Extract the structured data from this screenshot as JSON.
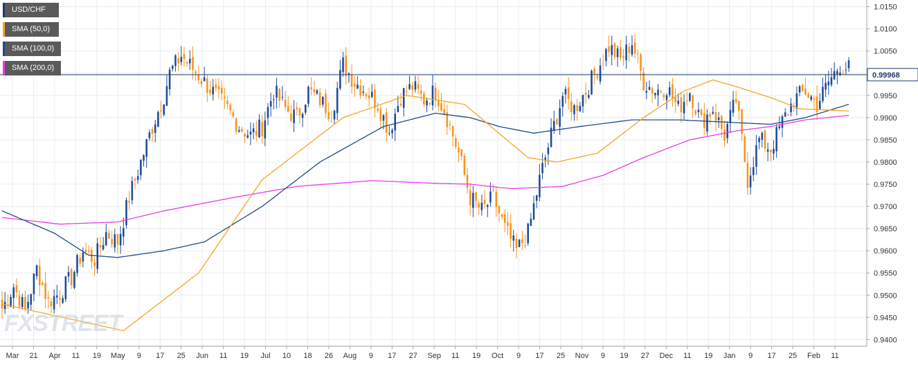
{
  "legend": [
    {
      "label": "USD/CHF",
      "color": "#1f3a68"
    },
    {
      "label": "SMA (50,0)",
      "color": "#f5a623"
    },
    {
      "label": "SMA (100,0)",
      "color": "#1e4b8f"
    },
    {
      "label": "SMA (200,0)",
      "color": "#e83ce8"
    }
  ],
  "watermark": "FXSTREET",
  "chart_data": {
    "type": "candlestick",
    "instrument": "USD/CHF",
    "grid": true,
    "price_axis": "right",
    "ylim": [
      0.9385,
      1.0165
    ],
    "y_ticks": [
      "1.0150",
      "1.0100",
      "1.0050",
      "1.0000",
      "0.9950",
      "0.9900",
      "0.9850",
      "0.9800",
      "0.9750",
      "0.9700",
      "0.9650",
      "0.9600",
      "0.9550",
      "0.9500",
      "0.9450",
      "0.9400"
    ],
    "x_ticks": [
      "Mar",
      "21",
      "Apr",
      "11",
      "19",
      "May",
      "9",
      "17",
      "25",
      "Jun",
      "11",
      "19",
      "Jul",
      "10",
      "18",
      "26",
      "Aug",
      "9",
      "17",
      "27",
      "Sep",
      "11",
      "19",
      "Oct",
      "9",
      "17",
      "25",
      "Nov",
      "9",
      "19",
      "27",
      "Dec",
      "11",
      "19",
      "Jan",
      "9",
      "17",
      "25",
      "Feb",
      "11"
    ],
    "current_price": "0.99968",
    "current_price_value": 0.99968,
    "colors": {
      "bull": "#1e4b9a",
      "bear": "#f7931e",
      "sma50": "#f5a623",
      "sma100": "#1e4b8f",
      "sma200": "#e83ce8",
      "price_line": "#1f3a68",
      "grid": "#e8ecf2"
    },
    "close_path": [
      [
        0,
        0.947
      ],
      [
        4,
        0.952
      ],
      [
        8,
        0.9465
      ],
      [
        12,
        0.956
      ],
      [
        16,
        0.9485
      ],
      [
        20,
        0.9505
      ],
      [
        24,
        0.954
      ],
      [
        28,
        0.96
      ],
      [
        32,
        0.958
      ],
      [
        36,
        0.964
      ],
      [
        40,
        0.962
      ],
      [
        44,
        0.972
      ],
      [
        48,
        0.98
      ],
      [
        52,
        0.988
      ],
      [
        56,
        0.995
      ],
      [
        58,
        1.0
      ],
      [
        62,
        1.004
      ],
      [
        66,
        1.001
      ],
      [
        70,
        0.998
      ],
      [
        74,
        0.995
      ],
      [
        78,
        0.992
      ],
      [
        82,
        0.988
      ],
      [
        86,
        0.986
      ],
      [
        90,
        0.988
      ],
      [
        94,
        0.996
      ],
      [
        98,
        0.992
      ],
      [
        102,
        0.99
      ],
      [
        106,
        0.996
      ],
      [
        110,
        0.994
      ],
      [
        114,
        0.991
      ],
      [
        118,
        1.002
      ],
      [
        122,
        0.998
      ],
      [
        126,
        0.996
      ],
      [
        130,
        0.993
      ],
      [
        134,
        0.987
      ],
      [
        138,
        0.995
      ],
      [
        142,
        0.997
      ],
      [
        146,
        0.994
      ],
      [
        150,
        0.996
      ],
      [
        154,
        0.99
      ],
      [
        158,
        0.982
      ],
      [
        162,
        0.972
      ],
      [
        166,
        0.969
      ],
      [
        170,
        0.972
      ],
      [
        174,
        0.965
      ],
      [
        178,
        0.96
      ],
      [
        182,
        0.964
      ],
      [
        186,
        0.976
      ],
      [
        190,
        0.986
      ],
      [
        194,
        0.995
      ],
      [
        198,
        0.992
      ],
      [
        202,
        0.996
      ],
      [
        206,
        1.001
      ],
      [
        210,
        1.006
      ],
      [
        214,
        1.003
      ],
      [
        218,
        1.007
      ],
      [
        222,
        0.998
      ],
      [
        226,
        0.996
      ],
      [
        230,
        0.997
      ],
      [
        234,
        0.992
      ],
      [
        238,
        0.996
      ],
      [
        242,
        0.989
      ],
      [
        246,
        0.992
      ],
      [
        250,
        0.986
      ],
      [
        254,
        0.994
      ],
      [
        258,
        0.976
      ],
      [
        262,
        0.985
      ],
      [
        266,
        0.983
      ],
      [
        270,
        0.989
      ],
      [
        274,
        0.994
      ],
      [
        278,
        0.996
      ],
      [
        282,
        0.993
      ],
      [
        286,
        0.998
      ],
      [
        290,
        1.002
      ],
      [
        293,
        1.001
      ]
    ],
    "sma50": [
      [
        0,
        0.948
      ],
      [
        42,
        0.942
      ],
      [
        68,
        0.955
      ],
      [
        90,
        0.976
      ],
      [
        118,
        0.99
      ],
      [
        140,
        0.995
      ],
      [
        160,
        0.993
      ],
      [
        182,
        0.981
      ],
      [
        192,
        0.98
      ],
      [
        206,
        0.982
      ],
      [
        222,
        0.99
      ],
      [
        236,
        0.996
      ],
      [
        246,
        0.9985
      ],
      [
        254,
        0.997
      ],
      [
        266,
        0.9945
      ],
      [
        276,
        0.992
      ],
      [
        293,
        0.9915
      ]
    ],
    "sma100": [
      [
        0,
        0.969
      ],
      [
        18,
        0.964
      ],
      [
        30,
        0.959
      ],
      [
        40,
        0.9585
      ],
      [
        56,
        0.96
      ],
      [
        70,
        0.962
      ],
      [
        90,
        0.97
      ],
      [
        110,
        0.98
      ],
      [
        132,
        0.988
      ],
      [
        150,
        0.991
      ],
      [
        162,
        0.99
      ],
      [
        172,
        0.988
      ],
      [
        184,
        0.9865
      ],
      [
        200,
        0.988
      ],
      [
        218,
        0.9895
      ],
      [
        234,
        0.9895
      ],
      [
        250,
        0.989
      ],
      [
        266,
        0.9885
      ],
      [
        278,
        0.99
      ],
      [
        293,
        0.993
      ]
    ],
    "sma200": [
      [
        0,
        0.9675
      ],
      [
        20,
        0.966
      ],
      [
        40,
        0.9665
      ],
      [
        56,
        0.969
      ],
      [
        80,
        0.972
      ],
      [
        102,
        0.9745
      ],
      [
        128,
        0.9758
      ],
      [
        150,
        0.9752
      ],
      [
        162,
        0.975
      ],
      [
        176,
        0.974
      ],
      [
        194,
        0.9745
      ],
      [
        208,
        0.977
      ],
      [
        222,
        0.981
      ],
      [
        238,
        0.985
      ],
      [
        254,
        0.987
      ],
      [
        266,
        0.988
      ],
      [
        278,
        0.9895
      ],
      [
        293,
        0.9905
      ]
    ]
  }
}
